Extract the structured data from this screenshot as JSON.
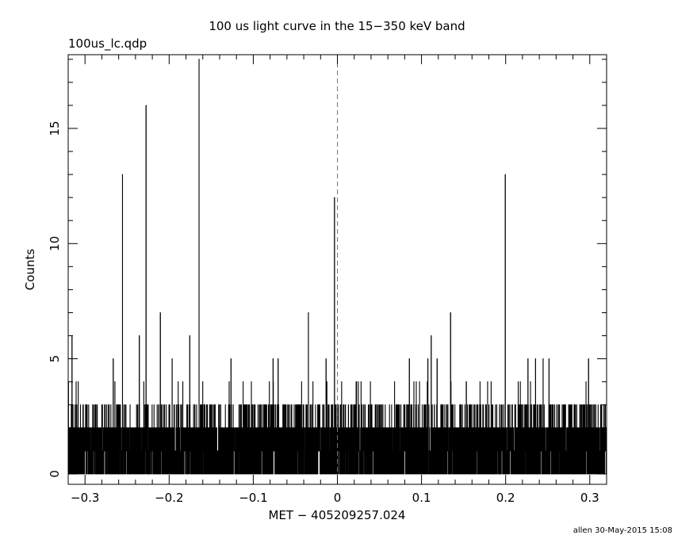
{
  "chart_data": {
    "type": "line",
    "title": "100 us light curve in the 15−350 keV band",
    "file_label": "100us_lc.qdp",
    "xlabel": "MET − 405209257.024",
    "ylabel": "Counts",
    "footer": "allen 30-May-2015 15:08",
    "xlim": [
      -0.32,
      0.32
    ],
    "ylim": [
      -0.45,
      18.2
    ],
    "x_ticks": [
      -0.3,
      -0.2,
      -0.1,
      0,
      0.1,
      0.2,
      0.3
    ],
    "x_tick_labels": [
      "−0.3",
      "−0.2",
      "−0.1",
      "0",
      "0.1",
      "0.2",
      "0.3"
    ],
    "y_ticks": [
      0,
      5,
      10,
      15
    ],
    "y_tick_labels": [
      "0",
      "5",
      "10",
      "15"
    ],
    "trigger_line_x": 0,
    "bin_width": 0.0001,
    "baseline_note": "dense 0–2 count noise across all bins with scattered 3–4 count bins",
    "peaks": [
      {
        "x": -0.3155,
        "y": 6
      },
      {
        "x": -0.2665,
        "y": 5
      },
      {
        "x": -0.2555,
        "y": 13
      },
      {
        "x": -0.2355,
        "y": 6
      },
      {
        "x": -0.2275,
        "y": 16
      },
      {
        "x": -0.2105,
        "y": 7
      },
      {
        "x": -0.1965,
        "y": 5
      },
      {
        "x": -0.1755,
        "y": 6
      },
      {
        "x": -0.1645,
        "y": 18
      },
      {
        "x": -0.1265,
        "y": 5
      },
      {
        "x": -0.0765,
        "y": 5
      },
      {
        "x": -0.0705,
        "y": 5
      },
      {
        "x": -0.0345,
        "y": 7
      },
      {
        "x": -0.0135,
        "y": 5
      },
      {
        "x": -0.0035,
        "y": 12
      },
      {
        "x": 0.0855,
        "y": 5
      },
      {
        "x": 0.1075,
        "y": 5
      },
      {
        "x": 0.1115,
        "y": 6
      },
      {
        "x": 0.1185,
        "y": 5
      },
      {
        "x": 0.1345,
        "y": 7
      },
      {
        "x": 0.1995,
        "y": 13
      },
      {
        "x": 0.2265,
        "y": 5
      },
      {
        "x": 0.2355,
        "y": 5
      },
      {
        "x": 0.2445,
        "y": 5
      },
      {
        "x": 0.2515,
        "y": 5
      },
      {
        "x": 0.2985,
        "y": 5
      }
    ]
  }
}
